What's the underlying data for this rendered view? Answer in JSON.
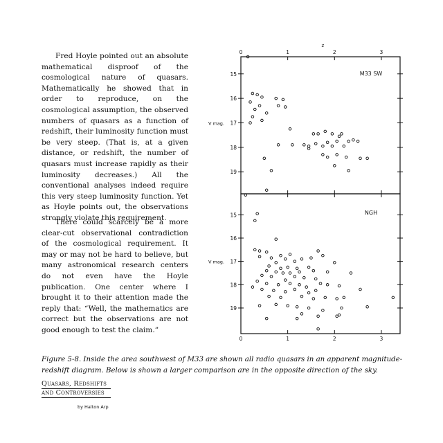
{
  "paragraphs": [
    "Fred Hoyle pointed out an absolute mathematical disproof of the cosmological nature of quasars. Mathematically he showed that in order to reproduce, on the cosmological assumption, the observed numbers of quasars as a function of redshift, their luminosity function must be very steep. (That is, at a given distance, or redshift, the number of quasars must increase rapidly as their luminosity decreases.) All the conventional analyses indeed require this very steep luminosity function. Yet as Hoyle points out, the observations strongly violate this requirement.",
    "There could scarcely be a more clear-cut observational contradiction of the cosmological requirement. It may or may not be hard to believe, but many astronomical research centers do not even have the Hoyle publication. One center where I brought it to their attention made the reply that: “Well, the mathematics are correct but the observations are not good enough to test the claim.”"
  ],
  "caption": "Figure 5-8. Inside the area southwest of M33 are shown all radio quasars in an apparent magnitude-redshift diagram. Below is shown a larger comparison are in the opposite direction of the sky.",
  "book_title": [
    "Quasars, Redshifts",
    "and Controversies"
  ],
  "byline": "by Halton Arp",
  "chart_data": [
    {
      "type": "scatter",
      "title": "",
      "panel_label": "M33 SW",
      "xlabel": "z",
      "ylabel": "V mag.",
      "xlim": [
        0,
        3.4
      ],
      "ylim": [
        14.3,
        19.9
      ],
      "y_inverted": true,
      "x_ticks": [
        "0",
        "1",
        "2",
        "3"
      ],
      "y_ticks": [
        "15",
        "16",
        "17",
        "18",
        "19"
      ],
      "points": [
        [
          0.15,
          14.3
        ],
        [
          0.25,
          15.8
        ],
        [
          0.35,
          15.85
        ],
        [
          0.45,
          15.95
        ],
        [
          0.75,
          16.0
        ],
        [
          0.9,
          16.05
        ],
        [
          0.2,
          16.15
        ],
        [
          0.4,
          16.3
        ],
        [
          0.8,
          16.3
        ],
        [
          0.95,
          16.35
        ],
        [
          0.3,
          16.45
        ],
        [
          0.55,
          16.6
        ],
        [
          0.25,
          16.75
        ],
        [
          0.45,
          16.9
        ],
        [
          0.2,
          17.0
        ],
        [
          1.05,
          17.25
        ],
        [
          0.8,
          17.9
        ],
        [
          1.1,
          17.9
        ],
        [
          1.35,
          17.9
        ],
        [
          1.45,
          17.95
        ],
        [
          1.6,
          17.85
        ],
        [
          1.75,
          17.95
        ],
        [
          1.65,
          17.45
        ],
        [
          1.8,
          17.35
        ],
        [
          1.55,
          17.45
        ],
        [
          1.95,
          17.45
        ],
        [
          2.15,
          17.45
        ],
        [
          1.85,
          17.8
        ],
        [
          2.05,
          17.75
        ],
        [
          2.3,
          17.75
        ],
        [
          2.5,
          17.75
        ],
        [
          2.1,
          17.55
        ],
        [
          2.4,
          17.7
        ],
        [
          1.95,
          17.95
        ],
        [
          2.2,
          17.95
        ],
        [
          1.45,
          18.05
        ],
        [
          1.75,
          18.3
        ],
        [
          1.85,
          18.4
        ],
        [
          2.05,
          18.3
        ],
        [
          2.25,
          18.4
        ],
        [
          2.55,
          18.45
        ],
        [
          2.7,
          18.45
        ],
        [
          0.5,
          18.45
        ],
        [
          2.0,
          18.75
        ],
        [
          2.3,
          18.95
        ],
        [
          0.65,
          18.95
        ],
        [
          0.55,
          19.75
        ]
      ]
    },
    {
      "type": "scatter",
      "title": "",
      "panel_label": "NGH",
      "xlabel": "z",
      "ylabel": "V mag.",
      "xlim": [
        0,
        3.4
      ],
      "ylim": [
        14.1,
        20.1
      ],
      "y_inverted": true,
      "x_ticks": [
        "0",
        "1",
        "2",
        "3"
      ],
      "y_ticks": [
        "15",
        "16",
        "17",
        "18",
        "19"
      ],
      "points": [
        [
          0.1,
          14.15
        ],
        [
          0.35,
          14.95
        ],
        [
          0.3,
          15.25
        ],
        [
          0.75,
          16.05
        ],
        [
          0.3,
          16.5
        ],
        [
          0.4,
          16.55
        ],
        [
          0.55,
          16.6
        ],
        [
          0.4,
          16.8
        ],
        [
          0.65,
          16.85
        ],
        [
          0.85,
          16.75
        ],
        [
          1.05,
          16.7
        ],
        [
          1.65,
          16.55
        ],
        [
          1.75,
          16.75
        ],
        [
          1.5,
          16.85
        ],
        [
          1.3,
          16.9
        ],
        [
          0.95,
          16.9
        ],
        [
          1.15,
          17.0
        ],
        [
          0.75,
          17.05
        ],
        [
          0.6,
          17.2
        ],
        [
          0.85,
          17.3
        ],
        [
          1.0,
          17.25
        ],
        [
          1.2,
          17.3
        ],
        [
          1.45,
          17.25
        ],
        [
          0.55,
          17.4
        ],
        [
          0.75,
          17.45
        ],
        [
          0.9,
          17.5
        ],
        [
          1.05,
          17.5
        ],
        [
          1.25,
          17.45
        ],
        [
          1.55,
          17.4
        ],
        [
          1.85,
          17.45
        ],
        [
          2.0,
          17.05
        ],
        [
          2.35,
          17.5
        ],
        [
          0.45,
          17.6
        ],
        [
          0.65,
          17.65
        ],
        [
          0.95,
          17.8
        ],
        [
          1.15,
          17.65
        ],
        [
          1.35,
          17.7
        ],
        [
          1.6,
          17.75
        ],
        [
          0.35,
          17.85
        ],
        [
          0.55,
          17.95
        ],
        [
          0.8,
          18.0
        ],
        [
          1.05,
          17.95
        ],
        [
          1.25,
          18.0
        ],
        [
          1.4,
          18.1
        ],
        [
          1.7,
          17.95
        ],
        [
          1.85,
          18.0
        ],
        [
          2.1,
          18.05
        ],
        [
          0.25,
          18.1
        ],
        [
          0.45,
          18.2
        ],
        [
          0.7,
          18.25
        ],
        [
          0.95,
          18.3
        ],
        [
          1.15,
          18.2
        ],
        [
          1.45,
          18.35
        ],
        [
          1.6,
          18.25
        ],
        [
          2.55,
          18.2
        ],
        [
          0.6,
          18.5
        ],
        [
          0.85,
          18.55
        ],
        [
          1.3,
          18.5
        ],
        [
          1.55,
          18.6
        ],
        [
          1.8,
          18.55
        ],
        [
          2.05,
          18.6
        ],
        [
          2.2,
          18.55
        ],
        [
          3.25,
          18.55
        ],
        [
          0.4,
          18.9
        ],
        [
          0.75,
          18.85
        ],
        [
          1.0,
          18.9
        ],
        [
          1.2,
          18.95
        ],
        [
          1.45,
          19.0
        ],
        [
          1.75,
          19.1
        ],
        [
          2.15,
          19.0
        ],
        [
          2.7,
          18.95
        ],
        [
          1.3,
          19.25
        ],
        [
          1.65,
          19.35
        ],
        [
          2.05,
          19.35
        ],
        [
          0.55,
          19.45
        ],
        [
          1.2,
          19.45
        ],
        [
          2.1,
          19.3
        ],
        [
          1.65,
          19.9
        ]
      ]
    }
  ]
}
